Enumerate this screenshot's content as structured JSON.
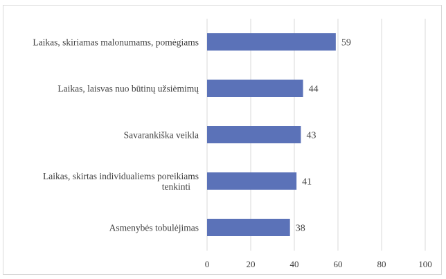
{
  "chart_data": {
    "type": "bar",
    "orientation": "horizontal",
    "categories": [
      [
        "Laikas, skiriamas malonumams, pomėgiams"
      ],
      [
        "Laikas, laisvas nuo būtinų užsiėmimų"
      ],
      [
        "Savarankiška veikla"
      ],
      [
        "Laikas, skirtas individualiems poreikiams",
        "tenkinti"
      ],
      [
        "Asmenybės tobulėjimas"
      ]
    ],
    "values": [
      59,
      44,
      43,
      41,
      38
    ],
    "data_labels": [
      "59",
      "44",
      "43",
      "41",
      "38"
    ],
    "xlim": [
      0,
      100
    ],
    "xticks": [
      "0",
      "20",
      "40",
      "60",
      "80",
      "100"
    ],
    "grid": "vertical",
    "bar_color": "#5B72B8",
    "grid_color": "#d9d9d9",
    "title": "",
    "xlabel": "",
    "ylabel": ""
  }
}
